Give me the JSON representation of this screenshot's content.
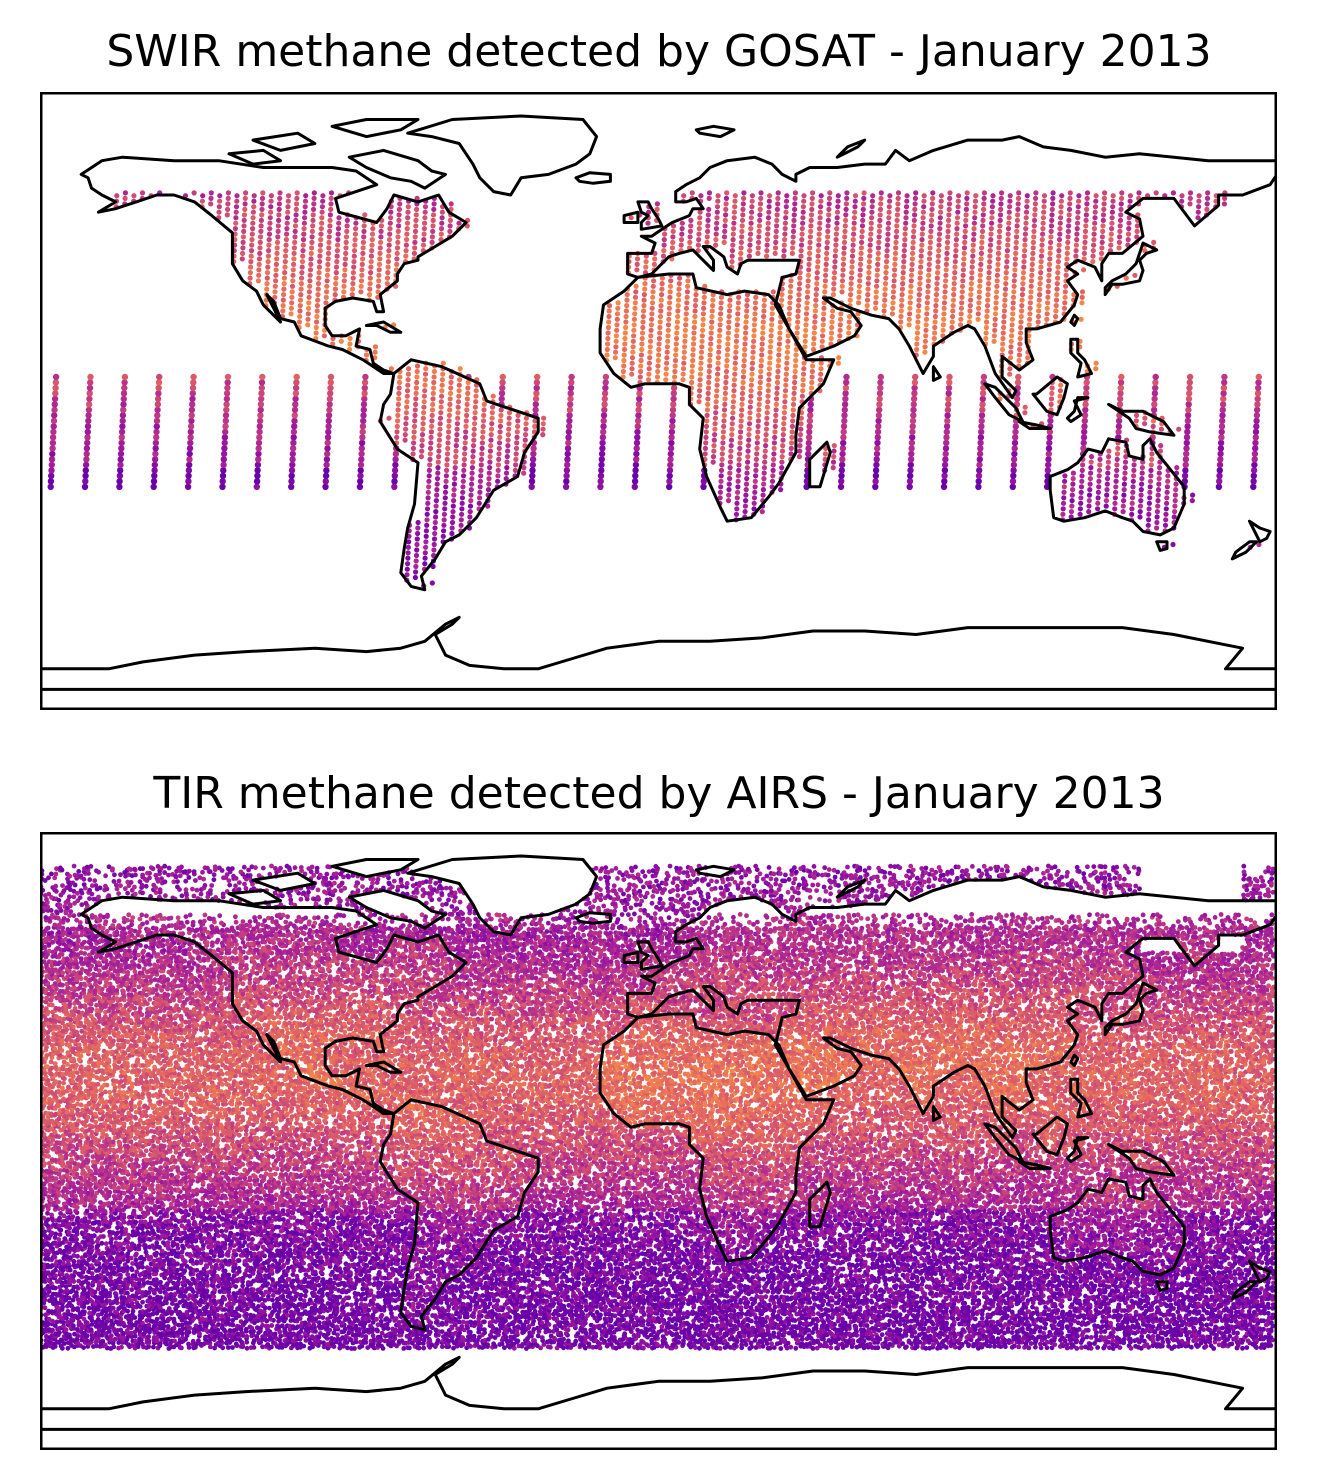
{
  "panels": [
    {
      "title": "SWIR methane detected by GOSAT - January 2013",
      "sampling": "gosat-sparse-swaths",
      "lat_coverage": [
        -57,
        60
      ],
      "land_coverage": [
        -57,
        60
      ],
      "ocean_coverage": [
        -25,
        8
      ]
    },
    {
      "title": "TIR methane detected by AIRS - January 2013",
      "sampling": "airs-dense",
      "lat_coverage": [
        -60,
        80
      ],
      "land_coverage": [
        -60,
        80
      ],
      "ocean_coverage": [
        -60,
        80
      ]
    }
  ],
  "map": {
    "projection": "plate-carree",
    "lon_range": [
      -180,
      180
    ],
    "lat_range": [
      -90,
      90
    ],
    "coastline_color": "#000000",
    "frame_color": "#000000"
  },
  "colormap": {
    "name": "plasma",
    "stops": [
      "#6a00a8",
      "#9c179e",
      "#b52f8c",
      "#d5546e",
      "#e66c5c",
      "#f48849"
    ]
  }
}
